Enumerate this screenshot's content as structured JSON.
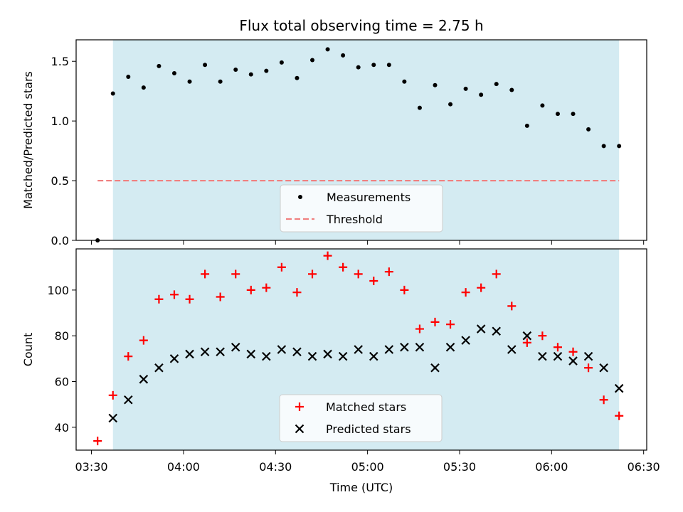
{
  "chart_data": {
    "type": "scatter",
    "title": "Flux total observing time = 2.75 h",
    "xlabel": "Time (UTC)",
    "x_ticks": [
      "03:30",
      "04:00",
      "04:30",
      "05:00",
      "05:30",
      "06:00",
      "06:30"
    ],
    "observing_window": {
      "start": "03:37",
      "end": "06:22",
      "color": "#add8e6"
    },
    "panels": [
      {
        "ylabel": "Matched/Predicted stars",
        "ylim": [
          0,
          1.68
        ],
        "y_ticks": [
          "0.0",
          "0.5",
          "1.0",
          "1.5"
        ],
        "legend_placement": "lower-center",
        "series": [
          {
            "name": "Measurements",
            "marker": "dot",
            "color": "#000000",
            "x": [
              "03:32",
              "03:37",
              "03:42",
              "03:47",
              "03:52",
              "03:57",
              "04:02",
              "04:07",
              "04:12",
              "04:17",
              "04:22",
              "04:27",
              "04:32",
              "04:37",
              "04:42",
              "04:47",
              "04:52",
              "04:57",
              "05:02",
              "05:07",
              "05:12",
              "05:17",
              "05:22",
              "05:27",
              "05:32",
              "05:37",
              "05:42",
              "05:47",
              "05:52",
              "05:57",
              "06:02",
              "06:07",
              "06:12",
              "06:17",
              "06:22"
            ],
            "values": [
              0.0,
              1.23,
              1.37,
              1.28,
              1.46,
              1.4,
              1.33,
              1.47,
              1.33,
              1.43,
              1.39,
              1.42,
              1.49,
              1.36,
              1.51,
              1.6,
              1.55,
              1.45,
              1.47,
              1.47,
              1.33,
              1.11,
              1.3,
              1.14,
              1.27,
              1.22,
              1.31,
              1.26,
              0.96,
              1.13,
              1.06,
              1.06,
              0.93,
              0.79,
              0.79
            ]
          },
          {
            "name": "Threshold",
            "marker": "dashed-line",
            "color": "#f08080",
            "x": [
              "03:32",
              "06:22"
            ],
            "values": [
              0.5,
              0.5
            ]
          }
        ]
      },
      {
        "ylabel": "Count",
        "ylim": [
          30,
          118
        ],
        "y_ticks": [
          "40",
          "60",
          "80",
          "100"
        ],
        "legend_placement": "lower-center",
        "series": [
          {
            "name": "Matched stars",
            "marker": "plus",
            "color": "#ff0000",
            "x": [
              "03:32",
              "03:37",
              "03:42",
              "03:47",
              "03:52",
              "03:57",
              "04:02",
              "04:07",
              "04:12",
              "04:17",
              "04:22",
              "04:27",
              "04:32",
              "04:37",
              "04:42",
              "04:47",
              "04:52",
              "04:57",
              "05:02",
              "05:07",
              "05:12",
              "05:17",
              "05:22",
              "05:27",
              "05:32",
              "05:37",
              "05:42",
              "05:47",
              "05:52",
              "05:57",
              "06:02",
              "06:07",
              "06:12",
              "06:17",
              "06:22"
            ],
            "values": [
              34,
              54,
              71,
              78,
              96,
              98,
              96,
              107,
              97,
              107,
              100,
              101,
              110,
              99,
              107,
              115,
              110,
              107,
              104,
              108,
              100,
              83,
              86,
              85,
              99,
              101,
              107,
              93,
              77,
              80,
              75,
              73,
              66,
              52,
              45
            ]
          },
          {
            "name": "Predicted stars",
            "marker": "x",
            "color": "#000000",
            "x": [
              "03:37",
              "03:42",
              "03:47",
              "03:52",
              "03:57",
              "04:02",
              "04:07",
              "04:12",
              "04:17",
              "04:22",
              "04:27",
              "04:32",
              "04:37",
              "04:42",
              "04:47",
              "04:52",
              "04:57",
              "05:02",
              "05:07",
              "05:12",
              "05:17",
              "05:22",
              "05:27",
              "05:32",
              "05:37",
              "05:42",
              "05:47",
              "05:52",
              "05:57",
              "06:02",
              "06:07",
              "06:12",
              "06:17",
              "06:22"
            ],
            "values": [
              44,
              52,
              61,
              66,
              70,
              72,
              73,
              73,
              75,
              72,
              71,
              74,
              73,
              71,
              72,
              71,
              74,
              71,
              74,
              75,
              75,
              66,
              75,
              78,
              83,
              82,
              74,
              80,
              71,
              71,
              69,
              71,
              66,
              57
            ]
          }
        ]
      }
    ]
  }
}
